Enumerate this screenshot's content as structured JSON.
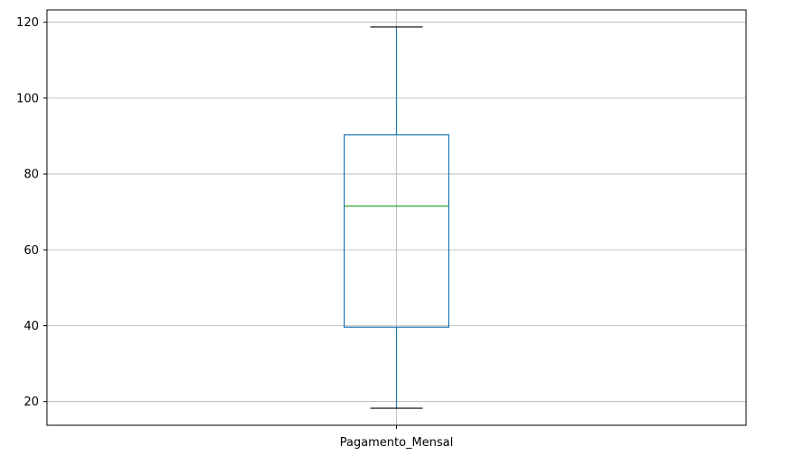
{
  "chart_data": {
    "type": "box",
    "grid": true,
    "categories": [
      "Pagamento_Mensal"
    ],
    "boxes": [
      {
        "name": "Pagamento_Mensal",
        "whisker_low": 18.25,
        "q1": 39.6,
        "median": 71.5,
        "q3": 90.3,
        "whisker_high": 118.75
      }
    ],
    "ylim": [
      13.75,
      123.25
    ],
    "y_ticks": [
      20,
      40,
      60,
      80,
      100,
      120
    ],
    "colors": {
      "box": "#1f77b4",
      "median": "#2ca02c",
      "cap": "#000000",
      "grid": "#b0b0b0",
      "axis": "#000000"
    }
  }
}
